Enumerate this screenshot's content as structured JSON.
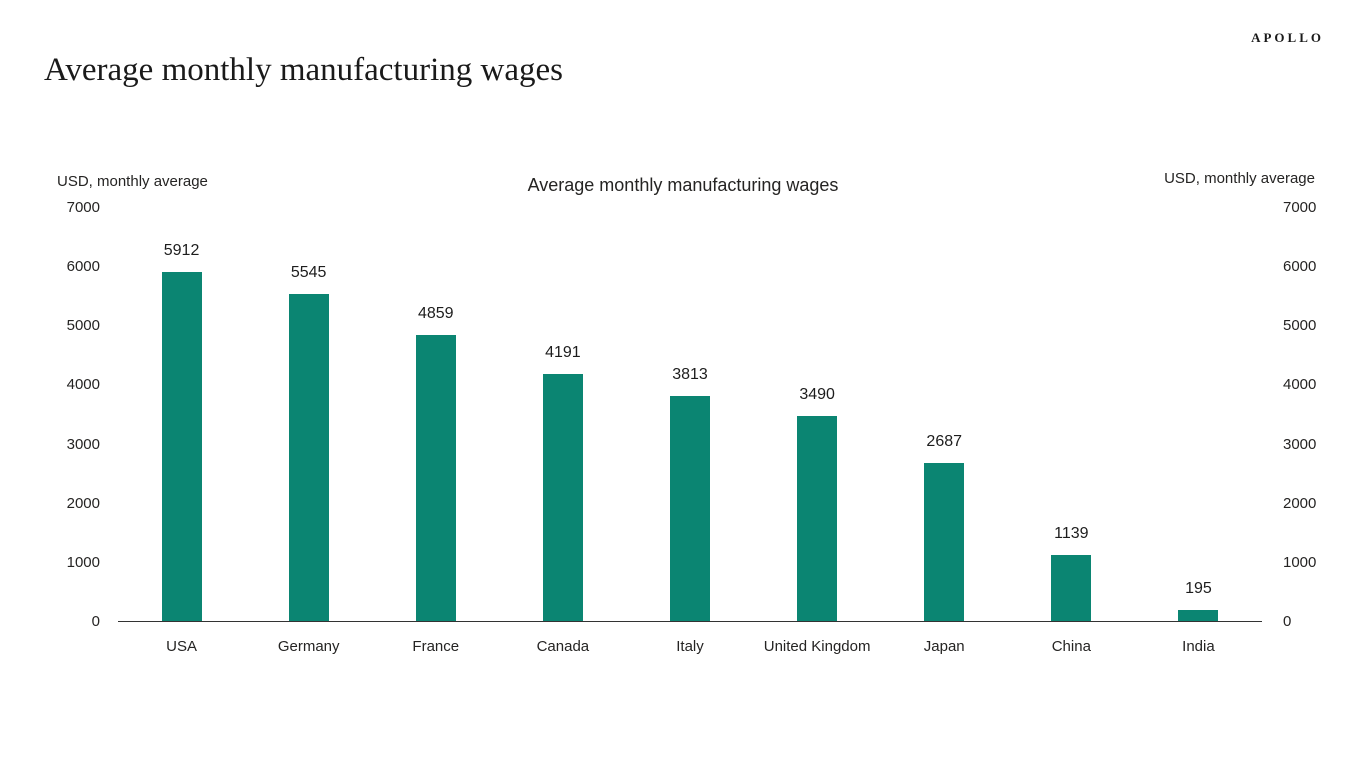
{
  "page": {
    "logo": "APOLLO",
    "title": "Average monthly manufacturing wages"
  },
  "chart_data": {
    "type": "bar",
    "title": "Average monthly manufacturing wages",
    "left_axis_label": "USD, monthly average",
    "right_axis_label": "USD, monthly average",
    "categories": [
      "USA",
      "Germany",
      "France",
      "Canada",
      "Italy",
      "United Kingdom",
      "Japan",
      "China",
      "India"
    ],
    "values": [
      5912,
      5545,
      4859,
      4191,
      3813,
      3490,
      2687,
      1139,
      195
    ],
    "value_labels_shown": true,
    "ylim": [
      0,
      7000
    ],
    "yticks": [
      0,
      1000,
      2000,
      3000,
      4000,
      5000,
      6000,
      7000
    ],
    "dual_axis": true,
    "grid": false,
    "legend": "none",
    "bar_color": "#0b8572",
    "axis_line_color": "#333333"
  }
}
